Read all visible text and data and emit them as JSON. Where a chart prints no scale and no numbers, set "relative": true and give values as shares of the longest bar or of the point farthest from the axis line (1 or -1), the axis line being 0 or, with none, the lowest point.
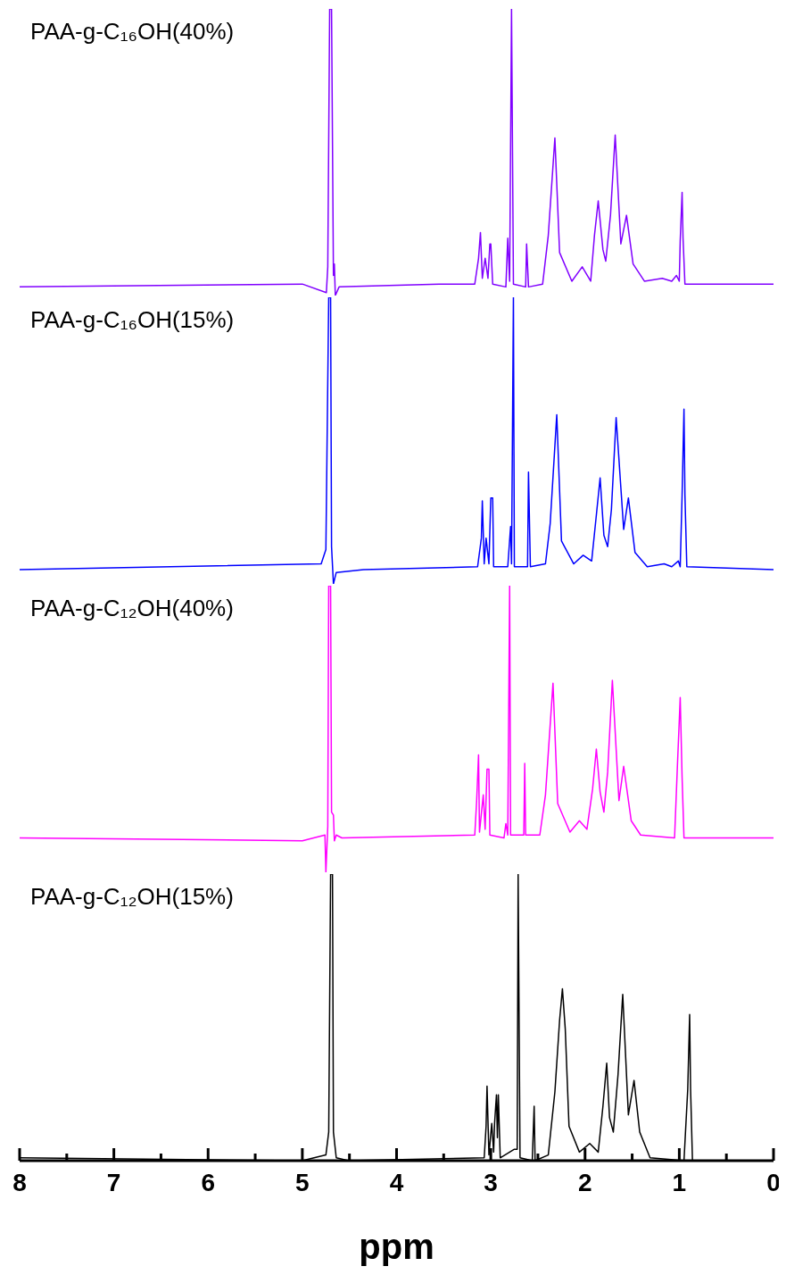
{
  "chart_data": [
    {
      "type": "line",
      "title": "PAA-g-C₁₆OH(40%)",
      "relative": true,
      "xlim": [
        8,
        0
      ],
      "tick_labels": false,
      "series": [
        {
          "color": "#8000ff",
          "x": [
            8,
            5.0,
            4.745,
            4.73,
            4.71,
            4.69,
            4.67,
            4.66,
            4.65,
            4.61,
            3.55,
            3.17,
            3.13,
            3.11,
            3.09,
            3.06,
            3.03,
            3.01,
            3.0,
            2.98,
            2.84,
            2.82,
            2.8,
            2.78,
            2.76,
            2.63,
            2.62,
            2.6,
            2.45,
            2.39,
            2.32,
            2.27,
            2.14,
            2.03,
            1.94,
            1.9,
            1.86,
            1.81,
            1.78,
            1.73,
            1.68,
            1.62,
            1.56,
            1.49,
            1.37,
            1.18,
            1.08,
            1.03,
            1.0,
            0.99,
            0.97,
            0.96,
            0.94,
            0
          ],
          "values": [
            0.03,
            0.04,
            0.01,
            0.1,
            1,
            1,
            0.07,
            0.11,
            0,
            0.03,
            0.04,
            0.04,
            0.13,
            0.22,
            0.06,
            0.13,
            0.06,
            0.18,
            0.18,
            0.04,
            0.03,
            0.2,
            0.05,
            1,
            0.04,
            0.03,
            0.18,
            0.03,
            0.04,
            0.21,
            0.55,
            0.15,
            0.05,
            0.1,
            0.05,
            0.21,
            0.33,
            0.16,
            0.12,
            0.28,
            0.56,
            0.18,
            0.28,
            0.11,
            0.05,
            0.06,
            0.05,
            0.07,
            0.05,
            0.19,
            0.36,
            0.2,
            0.04,
            0.04
          ]
        }
      ]
    },
    {
      "type": "line",
      "title": "PAA-g-C₁₆OH(15%)",
      "relative": true,
      "xlim": [
        8,
        0
      ],
      "tick_labels": false,
      "series": [
        {
          "color": "#0000ff",
          "x": [
            8,
            4.8,
            4.75,
            4.72,
            4.7,
            4.69,
            4.67,
            4.64,
            4.35,
            3.14,
            3.1,
            3.09,
            3.07,
            3.05,
            3.02,
            3.0,
            2.98,
            2.97,
            2.82,
            2.79,
            2.78,
            2.76,
            2.75,
            2.61,
            2.6,
            2.58,
            2.42,
            2.37,
            2.3,
            2.25,
            2.12,
            2.02,
            1.93,
            1.88,
            1.84,
            1.8,
            1.76,
            1.72,
            1.67,
            1.59,
            1.54,
            1.47,
            1.34,
            1.16,
            1.08,
            1.01,
            0.99,
            0.97,
            0.95,
            0.94,
            0.92,
            0
          ],
          "values": [
            0.05,
            0.07,
            0.12,
            1,
            1,
            0.13,
            0,
            0.04,
            0.05,
            0.06,
            0.16,
            0.29,
            0.07,
            0.16,
            0.07,
            0.3,
            0.3,
            0.06,
            0.06,
            0.2,
            0.07,
            1,
            0.06,
            0.06,
            0.39,
            0.06,
            0.07,
            0.21,
            0.59,
            0.15,
            0.07,
            0.1,
            0.08,
            0.24,
            0.37,
            0.17,
            0.13,
            0.26,
            0.58,
            0.19,
            0.3,
            0.11,
            0.06,
            0.07,
            0.06,
            0.08,
            0.06,
            0.31,
            0.61,
            0.31,
            0.06,
            0.05
          ]
        }
      ]
    },
    {
      "type": "line",
      "title": "PAA-g-C₁₂OH(40%)",
      "relative": true,
      "xlim": [
        8,
        0
      ],
      "tick_labels": false,
      "series": [
        {
          "color": "#ff00ff",
          "x": [
            8,
            5.0,
            4.76,
            4.75,
            4.73,
            4.72,
            4.7,
            4.69,
            4.67,
            4.66,
            4.64,
            4.58,
            3.17,
            3.15,
            3.13,
            3.12,
            3.08,
            3.06,
            3.04,
            3.02,
            3.01,
            2.86,
            2.84,
            2.82,
            2.8,
            2.79,
            2.65,
            2.64,
            2.63,
            2.48,
            2.42,
            2.34,
            2.29,
            2.16,
            2.06,
            1.98,
            1.92,
            1.88,
            1.84,
            1.8,
            1.76,
            1.71,
            1.64,
            1.59,
            1.51,
            1.41,
            1.05,
            1.02,
            0.99,
            0.97,
            0.95,
            0
          ],
          "values": [
            0.12,
            0.11,
            0.13,
            0,
            0.16,
            1,
            1,
            0.21,
            0.2,
            0.11,
            0.13,
            0.12,
            0.13,
            0.25,
            0.41,
            0.14,
            0.27,
            0.15,
            0.36,
            0.36,
            0.13,
            0.12,
            0.17,
            0.13,
            1,
            0.13,
            0.13,
            0.38,
            0.13,
            0.13,
            0.27,
            0.66,
            0.24,
            0.14,
            0.18,
            0.15,
            0.29,
            0.43,
            0.28,
            0.21,
            0.35,
            0.67,
            0.25,
            0.37,
            0.18,
            0.13,
            0.12,
            0.37,
            0.61,
            0.33,
            0.12,
            0.12
          ]
        }
      ]
    },
    {
      "type": "line",
      "title": "PAA-g-C₁₂OH(15%)",
      "relative": true,
      "xlim": [
        8,
        0
      ],
      "tick_labels": "x",
      "xlabel": "ppm",
      "xticks": [
        8,
        {
          "value": 7.5,
          "label": null
        },
        7,
        {
          "value": 6.5,
          "label": null
        },
        6,
        {
          "value": 5.5,
          "label": null
        },
        5,
        {
          "value": 4.5,
          "label": null
        },
        4,
        {
          "value": 3.5,
          "label": null
        },
        3,
        {
          "value": 2.5,
          "label": null
        },
        2,
        {
          "value": 1.5,
          "label": null
        },
        1,
        {
          "value": 0.5,
          "label": null
        },
        0
      ],
      "series": [
        {
          "color": "#000000",
          "x": [
            8,
            5.0,
            4.75,
            4.72,
            4.7,
            4.68,
            4.67,
            4.64,
            4.51,
            3.07,
            3.05,
            3.04,
            3.02,
            2.99,
            2.97,
            2.96,
            2.94,
            2.93,
            2.92,
            2.9,
            2.75,
            2.72,
            2.71,
            2.69,
            2.56,
            2.54,
            2.53,
            2.39,
            2.32,
            2.27,
            2.24,
            2.21,
            2.17,
            2.06,
            1.95,
            1.86,
            1.81,
            1.77,
            1.74,
            1.7,
            1.65,
            1.6,
            1.54,
            1.48,
            1.42,
            1.31,
            0.95,
            0.91,
            0.89,
            0.88,
            0.86,
            0
          ],
          "values": [
            0.01,
            0,
            0.02,
            0.1,
            1,
            1,
            0.1,
            0.01,
            0,
            0.01,
            0.12,
            0.26,
            0.02,
            0.13,
            0.03,
            0.13,
            0.23,
            0.08,
            0.23,
            0.01,
            0.04,
            0.04,
            1,
            0.01,
            0,
            0.19,
            0,
            0.02,
            0.24,
            0.49,
            0.6,
            0.46,
            0.12,
            0.03,
            0.06,
            0.03,
            0.19,
            0.34,
            0.15,
            0.1,
            0.3,
            0.58,
            0.16,
            0.28,
            0.1,
            0.01,
            0,
            0.25,
            0.51,
            0.25,
            0,
            0
          ]
        }
      ]
    }
  ]
}
